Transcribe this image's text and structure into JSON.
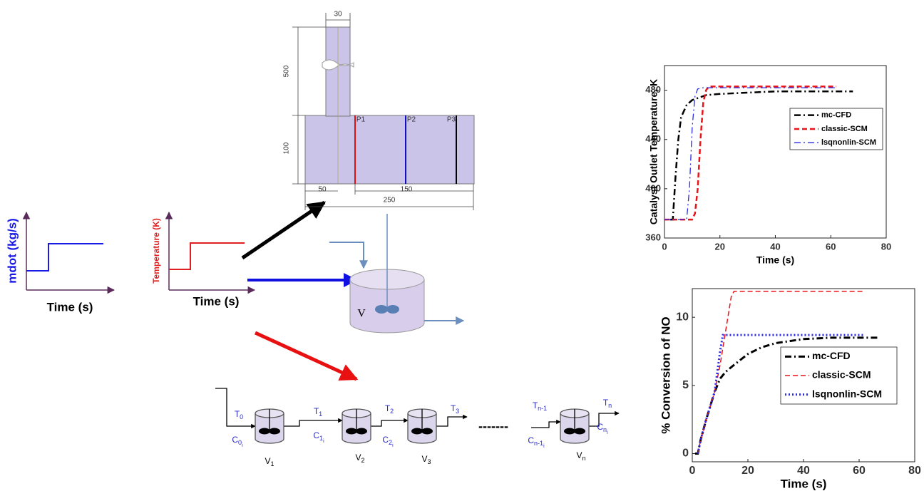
{
  "diagram": {
    "inputs": [
      {
        "y_label": "mdot (kg/s)",
        "x_label": "Time (s)"
      },
      {
        "y_label": "Temperature (K)",
        "x_label": "Time (s)"
      }
    ],
    "geometry": {
      "dimensions": [
        30,
        500,
        100,
        50,
        150,
        250
      ],
      "probes": [
        "P1",
        "P2",
        "P3"
      ]
    },
    "cstr": {
      "label": "V"
    },
    "tanks_in_series": {
      "labels": [
        {
          "base": "T",
          "sub": "0"
        },
        {
          "base": "C",
          "sub": "0",
          "subsub": "i"
        },
        {
          "base": "V",
          "sub": "1"
        },
        {
          "base": "T",
          "sub": "1"
        },
        {
          "base": "C",
          "sub": "1",
          "subsub": "i"
        },
        {
          "base": "V",
          "sub": "2"
        },
        {
          "base": "T",
          "sub": "2"
        },
        {
          "base": "C",
          "sub": "2",
          "subsub": "i"
        },
        {
          "base": "V",
          "sub": "3"
        },
        {
          "base": "T",
          "sub": "3"
        },
        {
          "base": "T",
          "sub": "n-1"
        },
        {
          "base": "C",
          "sub": "n-1",
          "subsub": "i"
        },
        {
          "base": "V",
          "sub": "n"
        },
        {
          "base": "T",
          "sub": "n"
        },
        {
          "base": "C",
          "sub": "n",
          "subsub": "i"
        }
      ],
      "ellipsis": "-------"
    }
  },
  "chart_data": [
    {
      "type": "line",
      "x_label": "Time (s)",
      "y_label": "Catalyst Outlet Temperature, K",
      "xlim": [
        0,
        80
      ],
      "xticks": [
        0,
        20,
        40,
        60,
        80
      ],
      "ylim": [
        360,
        500
      ],
      "yticks": [
        360,
        400,
        440,
        480
      ],
      "series": [
        {
          "name": "mc-CFD",
          "color": "#000000",
          "linestyle": "dashdot",
          "linewidth": 2.5,
          "x": [
            2,
            3,
            4,
            5,
            6,
            8,
            10,
            15,
            20,
            30,
            40,
            50,
            60,
            68
          ],
          "values": [
            375,
            375,
            410,
            440,
            458,
            468,
            472,
            476,
            477,
            478,
            479,
            479,
            479,
            479
          ]
        },
        {
          "name": "classic-SCM",
          "color": "#e8141a",
          "linestyle": "dashed",
          "linewidth": 2.5,
          "x": [
            0,
            10,
            11,
            12,
            13,
            14,
            15,
            16,
            20,
            62
          ],
          "values": [
            375,
            375,
            380,
            400,
            440,
            470,
            480,
            483,
            483,
            483
          ]
        },
        {
          "name": "lsqnonlin-SCM",
          "color": "#2a2ae6",
          "linestyle": "dashdot",
          "linewidth": 1.3,
          "x": [
            0,
            8,
            9,
            10,
            11,
            12,
            14,
            20,
            62
          ],
          "values": [
            375,
            375,
            400,
            450,
            475,
            481,
            482,
            482,
            482
          ]
        }
      ]
    },
    {
      "type": "line",
      "x_label": "Time (s)",
      "y_label": "% Conversion of NO",
      "xlim": [
        0,
        80
      ],
      "xticks": [
        0,
        20,
        40,
        60,
        80
      ],
      "ylim": [
        -0.6,
        12.1
      ],
      "yticks": [
        0,
        5,
        10
      ],
      "series": [
        {
          "name": "mc-CFD",
          "color": "#000000",
          "linestyle": "dashdot",
          "linewidth": 3,
          "x": [
            1,
            2,
            3,
            5,
            8,
            10,
            12,
            15,
            20,
            25,
            30,
            40,
            50,
            60,
            67
          ],
          "values": [
            0,
            0,
            1,
            2.5,
            4.5,
            5.5,
            6,
            6.5,
            7.3,
            7.8,
            8.1,
            8.4,
            8.5,
            8.5,
            8.5
          ]
        },
        {
          "name": "classic-SCM",
          "color": "#e8141a",
          "linestyle": "dashed",
          "linewidth": 1.5,
          "x": [
            2,
            3,
            5,
            8,
            10,
            12,
            14,
            15,
            62
          ],
          "values": [
            0,
            1,
            2.5,
            4.5,
            6.5,
            9,
            11.5,
            11.9,
            11.9
          ]
        },
        {
          "name": "lsqnonlin-SCM",
          "color": "#2a2ae6",
          "linestyle": "dotted",
          "linewidth": 3,
          "x": [
            2,
            3,
            5,
            8,
            10,
            11,
            20,
            62
          ],
          "values": [
            0,
            1,
            2.5,
            4.5,
            7.5,
            8.7,
            8.7,
            8.7
          ]
        }
      ]
    }
  ]
}
